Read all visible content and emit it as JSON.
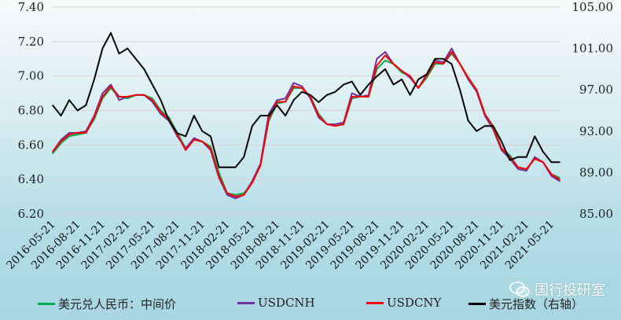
{
  "chart_data": {
    "type": "line",
    "x": [
      "2016-05",
      "2016-06",
      "2016-07",
      "2016-08",
      "2016-09",
      "2016-10",
      "2016-11",
      "2016-12",
      "2017-01",
      "2017-02",
      "2017-03",
      "2017-04",
      "2017-05",
      "2017-06",
      "2017-07",
      "2017-08",
      "2017-09",
      "2017-10",
      "2017-11",
      "2017-12",
      "2018-01",
      "2018-02",
      "2018-03",
      "2018-04",
      "2018-05",
      "2018-06",
      "2018-07",
      "2018-08",
      "2018-09",
      "2018-10",
      "2018-11",
      "2018-12",
      "2019-01",
      "2019-02",
      "2019-03",
      "2019-04",
      "2019-05",
      "2019-06",
      "2019-07",
      "2019-08",
      "2019-09",
      "2019-10",
      "2019-11",
      "2019-12",
      "2020-01",
      "2020-02",
      "2020-03",
      "2020-04",
      "2020-05",
      "2020-06",
      "2020-07",
      "2020-08",
      "2020-09",
      "2020-10",
      "2020-11",
      "2020-12",
      "2021-01",
      "2021-02",
      "2021-03",
      "2021-04",
      "2021-05",
      "2021-06"
    ],
    "x_tick_labels": [
      "2016-05-21",
      "2016-08-21",
      "2016-11-21",
      "2017-02-21",
      "2017-05-21",
      "2017-08-21",
      "2017-11-21",
      "2018-02-21",
      "2018-05-21",
      "2018-08-21",
      "2018-11-21",
      "2019-02-21",
      "2019-05-21",
      "2019-08-21",
      "2019-11-21",
      "2020-02-21",
      "2020-05-21",
      "2020-08-21",
      "2020-11-21",
      "2021-02-21",
      "2021-05-21"
    ],
    "y_left": {
      "ylim": [
        6.2,
        7.4
      ],
      "ticks": [
        "6.20",
        "6.40",
        "6.60",
        "6.80",
        "7.00",
        "7.20",
        "7.40"
      ]
    },
    "y_right": {
      "ylim": [
        85,
        105
      ],
      "ticks": [
        "85.00",
        "89.00",
        "93.00",
        "97.00",
        "101.00",
        "105.00"
      ]
    },
    "grid": true,
    "legend": "bottom",
    "series": [
      {
        "name": "美元兑人民币：中间价",
        "axis": "left",
        "color": "#00b050",
        "values": [
          6.55,
          6.61,
          6.65,
          6.66,
          6.67,
          6.75,
          6.87,
          6.93,
          6.88,
          6.87,
          6.89,
          6.89,
          6.87,
          6.8,
          6.76,
          6.67,
          6.58,
          6.63,
          6.62,
          6.59,
          6.44,
          6.32,
          6.31,
          6.32,
          6.38,
          6.48,
          6.74,
          6.84,
          6.85,
          6.93,
          6.93,
          6.88,
          6.78,
          6.72,
          6.71,
          6.72,
          6.87,
          6.88,
          6.88,
          7.04,
          7.09,
          7.07,
          7.02,
          7.0,
          6.93,
          6.99,
          7.07,
          7.07,
          7.13,
          7.07,
          6.99,
          6.92,
          6.78,
          6.71,
          6.58,
          6.54,
          6.47,
          6.46,
          6.52,
          6.5,
          6.43,
          6.41
        ]
      },
      {
        "name": "USDCNH",
        "axis": "left",
        "color": "#7030a0",
        "values": [
          6.56,
          6.63,
          6.67,
          6.67,
          6.68,
          6.77,
          6.9,
          6.95,
          6.86,
          6.88,
          6.89,
          6.89,
          6.85,
          6.78,
          6.74,
          6.65,
          6.58,
          6.64,
          6.62,
          6.57,
          6.41,
          6.31,
          6.29,
          6.31,
          6.39,
          6.49,
          6.78,
          6.86,
          6.87,
          6.96,
          6.94,
          6.87,
          6.76,
          6.72,
          6.72,
          6.73,
          6.9,
          6.88,
          6.89,
          7.1,
          7.14,
          7.07,
          7.03,
          6.99,
          6.93,
          7.01,
          7.09,
          7.08,
          7.16,
          7.07,
          6.98,
          6.91,
          6.77,
          6.69,
          6.57,
          6.52,
          6.46,
          6.45,
          6.53,
          6.5,
          6.42,
          6.39
        ]
      },
      {
        "name": "USDCNY",
        "axis": "left",
        "color": "#ff0000",
        "values": [
          6.56,
          6.62,
          6.66,
          6.67,
          6.67,
          6.76,
          6.88,
          6.94,
          6.88,
          6.88,
          6.89,
          6.89,
          6.86,
          6.79,
          6.75,
          6.66,
          6.57,
          6.63,
          6.62,
          6.58,
          6.42,
          6.32,
          6.3,
          6.31,
          6.38,
          6.48,
          6.75,
          6.85,
          6.85,
          6.94,
          6.93,
          6.88,
          6.77,
          6.72,
          6.71,
          6.72,
          6.88,
          6.88,
          6.88,
          7.06,
          7.12,
          7.07,
          7.03,
          7.0,
          6.93,
          7.0,
          7.08,
          7.07,
          7.14,
          7.07,
          6.99,
          6.92,
          6.78,
          6.7,
          6.58,
          6.53,
          6.47,
          6.46,
          6.52,
          6.5,
          6.43,
          6.4
        ]
      },
      {
        "name": "美元指数（右轴）",
        "axis": "right",
        "color": "#000000",
        "values": [
          95.5,
          94.5,
          96.0,
          95.0,
          95.5,
          98.0,
          101.0,
          102.5,
          100.5,
          101.0,
          100.0,
          99.0,
          97.5,
          96.0,
          94.0,
          92.8,
          92.5,
          94.5,
          93.0,
          92.5,
          89.5,
          89.5,
          89.5,
          90.5,
          93.5,
          94.5,
          94.5,
          95.5,
          94.5,
          96.0,
          96.8,
          96.5,
          95.8,
          96.5,
          96.8,
          97.5,
          97.8,
          96.5,
          97.5,
          98.3,
          99.0,
          97.5,
          98.0,
          96.5,
          98.0,
          98.5,
          100.0,
          100.0,
          99.5,
          97.0,
          94.0,
          93.0,
          93.5,
          93.5,
          92.0,
          90.2,
          90.5,
          90.5,
          92.5,
          91.0,
          90.0,
          90.0
        ]
      }
    ]
  },
  "watermark": "国行投研室"
}
